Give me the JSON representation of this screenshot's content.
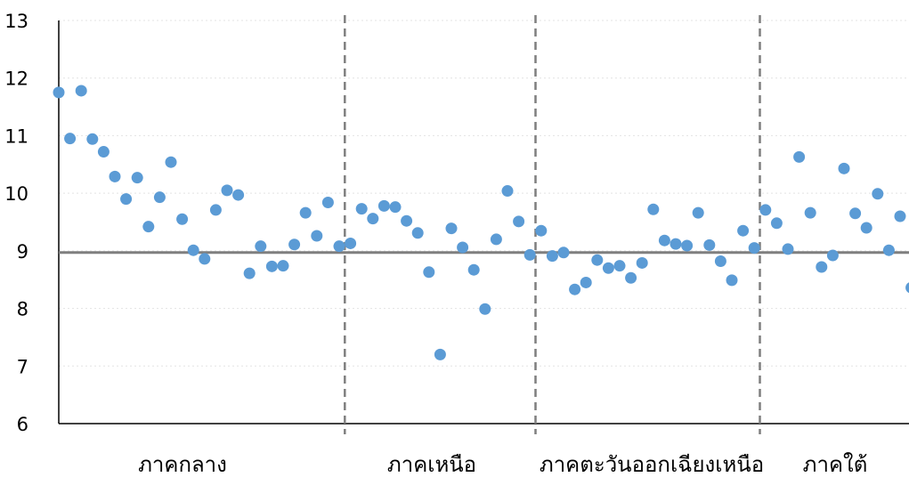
{
  "chart_data": {
    "type": "scatter",
    "title": "",
    "xlabel": "",
    "ylabel": "",
    "ylim": [
      6,
      13
    ],
    "yticks": [
      "6",
      "7",
      "8",
      "9",
      "10",
      "11",
      "12",
      "13"
    ],
    "grid": true,
    "legend": "none",
    "point_color": "#5b9bd5",
    "reference_line": {
      "y": 8.97,
      "color": "#7f7f7f"
    },
    "divider_color": "#7f7f7f",
    "regions": [
      {
        "label": "ภาคกลาง",
        "start": 1,
        "end": 26
      },
      {
        "label": "ภาคเหนือ",
        "start": 27,
        "end": 43
      },
      {
        "label": "ภาคตะวันออกเฉียงเหนือ",
        "start": 44,
        "end": 63
      },
      {
        "label": "ภาคใต้",
        "start": 64,
        "end": 77
      }
    ],
    "x": [
      1,
      2,
      3,
      4,
      5,
      6,
      7,
      8,
      9,
      10,
      11,
      12,
      13,
      14,
      15,
      16,
      17,
      18,
      19,
      20,
      21,
      22,
      23,
      24,
      25,
      26,
      27,
      28,
      29,
      30,
      31,
      32,
      33,
      34,
      35,
      36,
      37,
      38,
      39,
      40,
      41,
      42,
      43,
      44,
      45,
      46,
      47,
      48,
      49,
      50,
      51,
      52,
      53,
      54,
      55,
      56,
      57,
      58,
      59,
      60,
      61,
      62,
      63,
      64,
      65,
      66,
      67,
      68,
      69,
      70,
      71,
      72,
      73,
      74,
      75,
      76,
      77
    ],
    "values": [
      11.75,
      10.95,
      11.78,
      10.94,
      10.72,
      10.29,
      9.9,
      10.27,
      9.42,
      9.93,
      10.54,
      9.55,
      9.01,
      8.86,
      9.71,
      10.05,
      9.97,
      8.61,
      9.08,
      8.73,
      8.74,
      9.11,
      9.66,
      9.26,
      9.84,
      9.08,
      9.13,
      9.73,
      9.56,
      9.78,
      9.76,
      9.52,
      9.31,
      8.63,
      7.2,
      9.39,
      9.06,
      8.67,
      7.99,
      9.2,
      10.04,
      9.51,
      8.93,
      9.35,
      8.91,
      8.97,
      8.33,
      8.45,
      8.84,
      8.7,
      8.74,
      8.53,
      8.79,
      9.72,
      9.18,
      9.12,
      9.09,
      9.66,
      9.1,
      8.82,
      8.49,
      9.35,
      9.05,
      9.71,
      9.48,
      9.03,
      10.63,
      9.66,
      8.72,
      8.92,
      10.43,
      9.65,
      9.4,
      9.99,
      9.01,
      9.6,
      8.36
    ]
  }
}
